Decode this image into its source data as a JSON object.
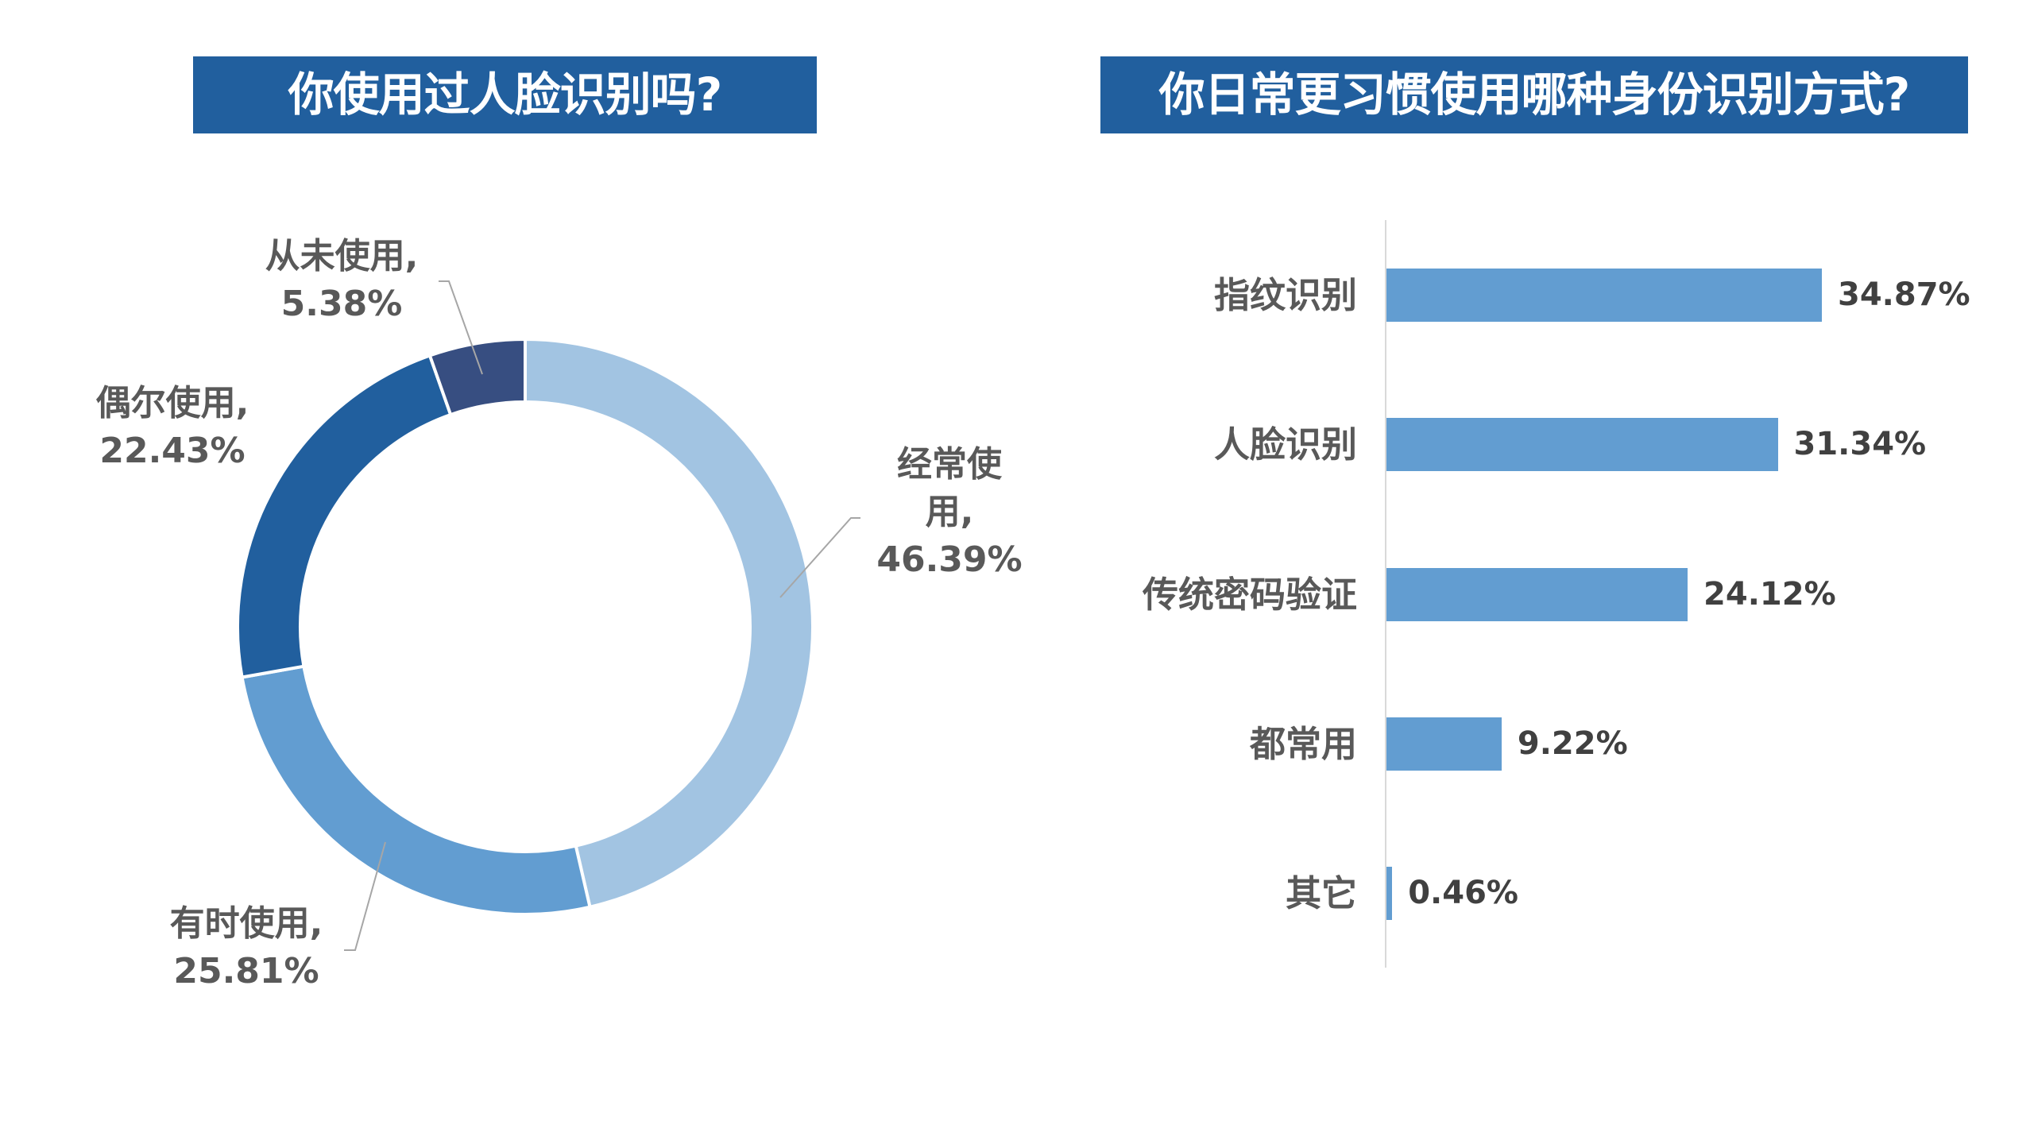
{
  "left_chart": {
    "title": "你使用过人脸识别吗?",
    "segments": [
      {
        "label": "经常使用,",
        "label_lines": [
          "经常使",
          "用,"
        ],
        "value_text": "46.39%",
        "color": "#A2C4E2"
      },
      {
        "label": "有时使用,",
        "label_lines": [
          "有时使用,"
        ],
        "value_text": "25.81%",
        "color": "#629DD1"
      },
      {
        "label": "偶尔使用,",
        "label_lines": [
          "偶尔使用,"
        ],
        "value_text": "22.43%",
        "color": "#215F9E"
      },
      {
        "label": "从未使用,",
        "label_lines": [
          "从未使用,"
        ],
        "value_text": "5.38%",
        "color": "#374E81"
      }
    ]
  },
  "right_chart": {
    "title": "你日常更习惯使用哪种身份识别方式?",
    "bars": [
      {
        "label": "指纹识别",
        "value_text": "34.87%"
      },
      {
        "label": "人脸识别",
        "value_text": "31.34%"
      },
      {
        "label": "传统密码验证",
        "value_text": "24.12%"
      },
      {
        "label": "都常用",
        "value_text": "9.22%"
      },
      {
        "label": "其它",
        "value_text": "0.46%"
      }
    ],
    "bar_color": "#629DD1"
  },
  "colors": {
    "title_bg": "#215F9E",
    "title_text": "#FFFFFF",
    "label_text": "#595959",
    "value_text": "#404040",
    "axis": "#D9D9D9",
    "leader_line": "#A6A6A6"
  },
  "chart_data": [
    {
      "type": "pie",
      "title": "你使用过人脸识别吗?",
      "donut": true,
      "categories": [
        "经常使用",
        "有时使用",
        "偶尔使用",
        "从未使用"
      ],
      "values": [
        46.39,
        25.81,
        22.43,
        5.38
      ],
      "unit": "%",
      "colors": [
        "#A2C4E2",
        "#629DD1",
        "#215F9E",
        "#374E81"
      ],
      "start_angle": "top, clockwise",
      "legend": "none (data labels with leader lines)"
    },
    {
      "type": "bar",
      "orientation": "horizontal",
      "title": "你日常更习惯使用哪种身份识别方式?",
      "categories": [
        "指纹识别",
        "人脸识别",
        "传统密码验证",
        "都常用",
        "其它"
      ],
      "values": [
        34.87,
        31.34,
        24.12,
        9.22,
        0.46
      ],
      "unit": "%",
      "xlabel": "",
      "ylabel": "",
      "grid": false,
      "value_axis_visible": false,
      "data_labels": true,
      "color": "#629DD1"
    }
  ]
}
